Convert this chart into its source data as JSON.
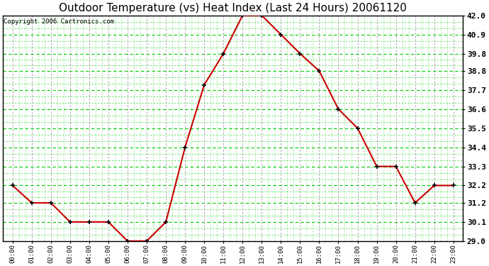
{
  "title": "Outdoor Temperature (vs) Heat Index (Last 24 Hours) 20061120",
  "copyright": "Copyright 2006 Cartronics.com",
  "hours": [
    "00:00",
    "01:00",
    "02:00",
    "03:00",
    "04:00",
    "05:00",
    "06:00",
    "07:00",
    "08:00",
    "09:00",
    "10:00",
    "11:00",
    "12:00",
    "13:00",
    "14:00",
    "15:00",
    "16:00",
    "17:00",
    "18:00",
    "19:00",
    "20:00",
    "21:00",
    "22:00",
    "23:00"
  ],
  "values": [
    32.2,
    31.2,
    31.2,
    30.1,
    30.1,
    30.1,
    29.0,
    29.0,
    30.1,
    34.4,
    38.0,
    39.8,
    42.0,
    42.0,
    40.9,
    39.8,
    38.8,
    36.6,
    35.5,
    33.3,
    33.3,
    31.2,
    32.2,
    32.2
  ],
  "ylim_min": 29.0,
  "ylim_max": 42.0,
  "yticks": [
    29.0,
    30.1,
    31.2,
    32.2,
    33.3,
    34.4,
    35.5,
    36.6,
    37.7,
    38.8,
    39.8,
    40.9,
    42.0
  ],
  "line_color": "#cc0000",
  "marker_color": "#000000",
  "bg_color": "#ffffff",
  "grid_color_green": "#00cc00",
  "grid_color_gray": "#888888",
  "title_color": "#000000",
  "title_fontsize": 11,
  "copyright_fontsize": 6.5
}
